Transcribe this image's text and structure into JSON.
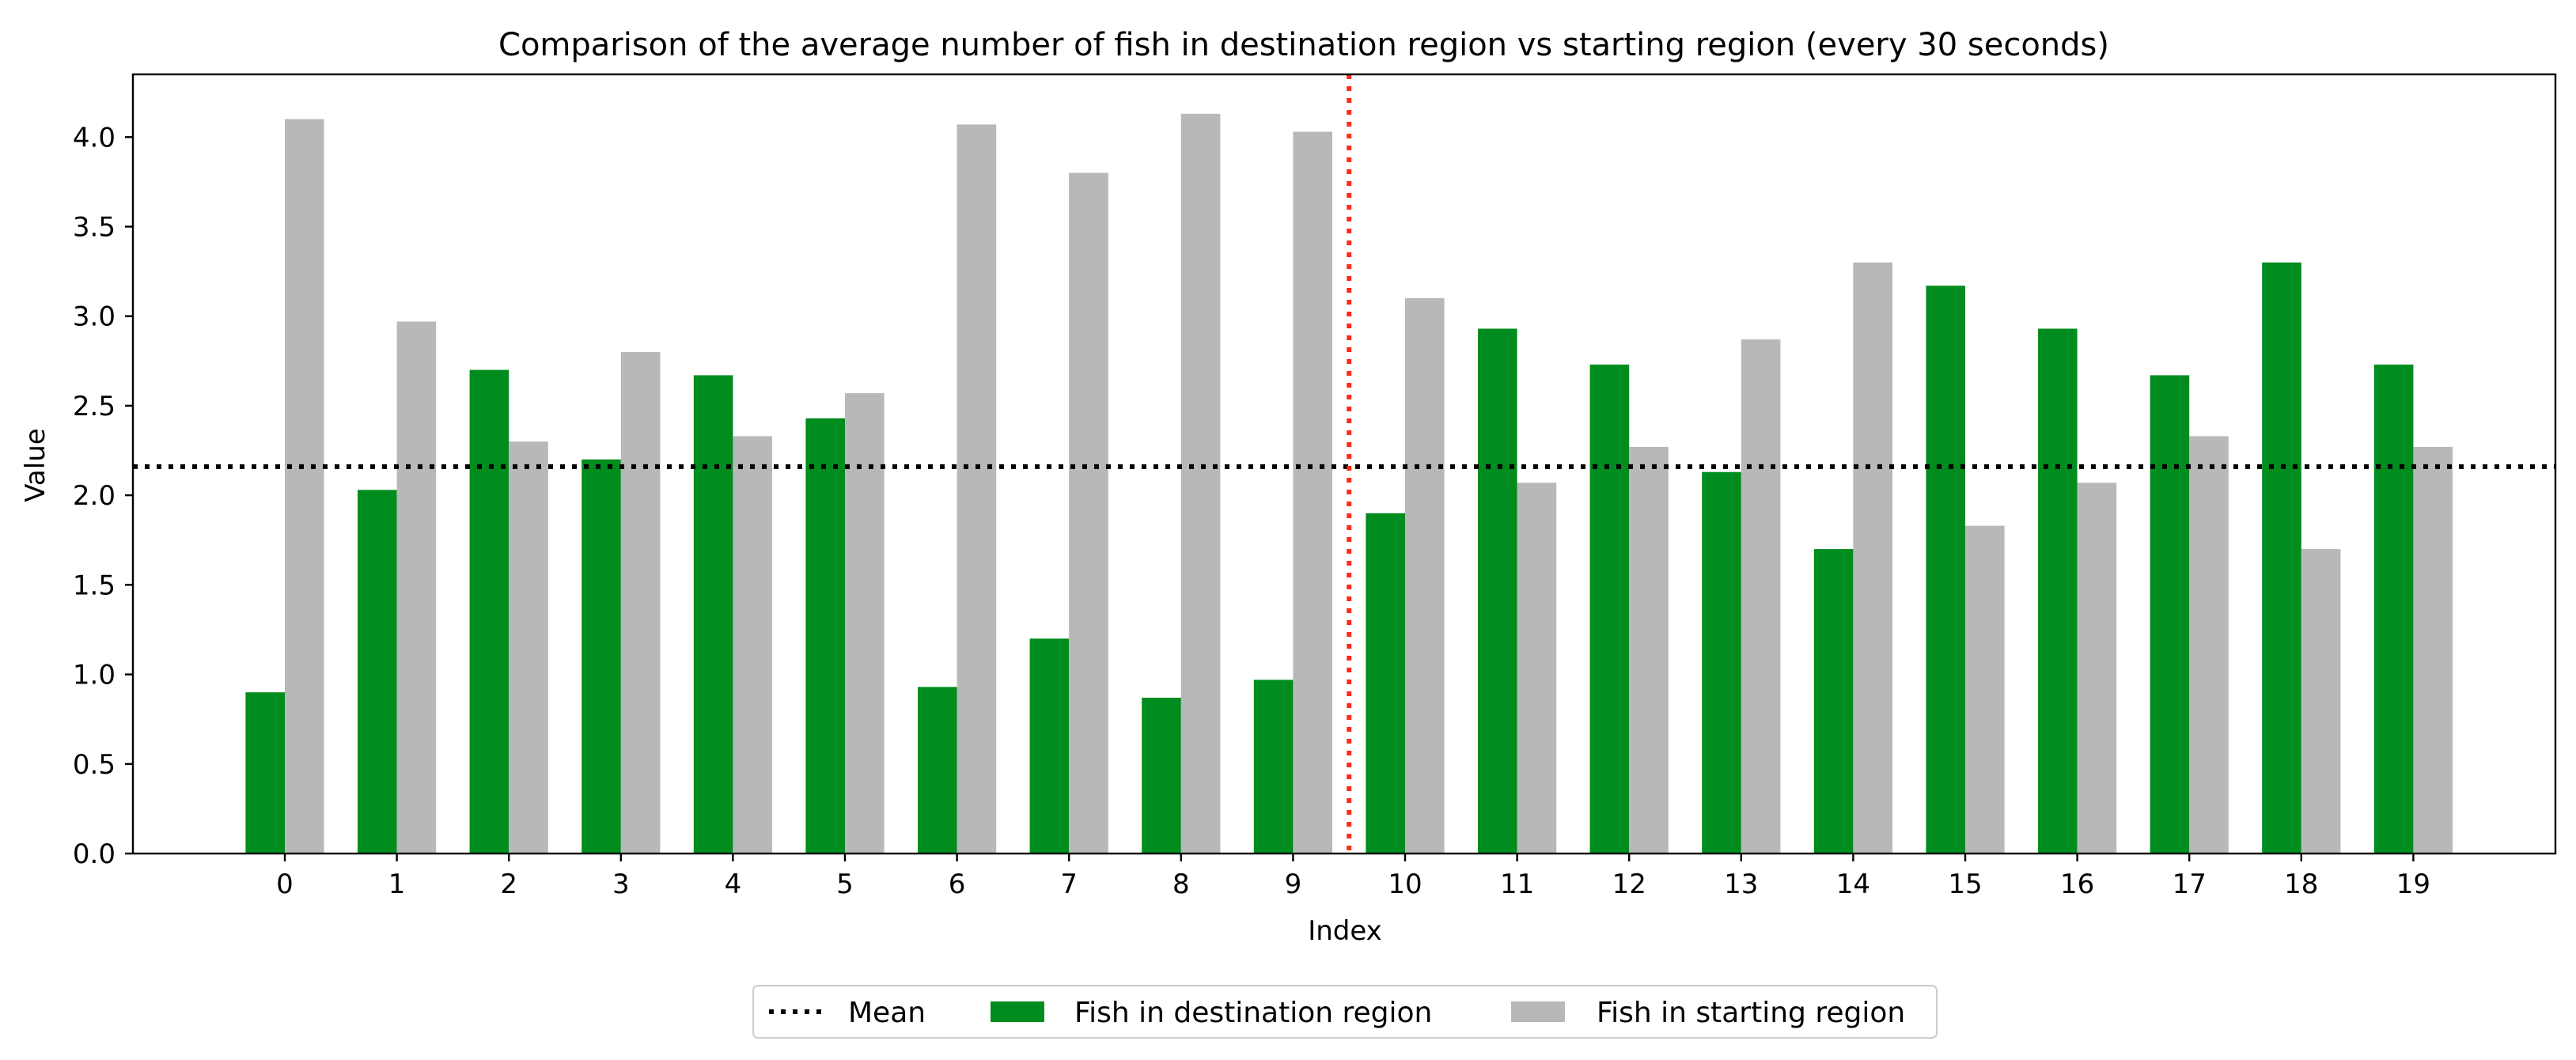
{
  "chart_data": {
    "type": "bar",
    "title": "Comparison of the average number of fish in destination region vs starting region (every 30 seconds)",
    "xlabel": "Index",
    "ylabel": "Value",
    "ylim": [
      0,
      4.35
    ],
    "yticks": [
      "0.0",
      "0.5",
      "1.0",
      "1.5",
      "2.0",
      "2.5",
      "3.0",
      "3.5",
      "4.0"
    ],
    "categories": [
      "0",
      "1",
      "2",
      "3",
      "4",
      "5",
      "6",
      "7",
      "8",
      "9",
      "10",
      "11",
      "12",
      "13",
      "14",
      "15",
      "16",
      "17",
      "18",
      "19"
    ],
    "series": [
      {
        "name": "Fish in destination region",
        "color": "#008c1e",
        "values": [
          0.9,
          2.03,
          2.7,
          2.2,
          2.67,
          2.43,
          0.93,
          1.2,
          0.87,
          0.97,
          1.9,
          2.93,
          2.73,
          2.13,
          1.7,
          3.17,
          2.93,
          2.67,
          3.3,
          2.73
        ]
      },
      {
        "name": "Fish in starting region",
        "color": "#b8b8b8",
        "values": [
          4.1,
          2.97,
          2.3,
          2.8,
          2.33,
          2.57,
          4.07,
          3.8,
          4.13,
          4.03,
          3.1,
          2.07,
          2.27,
          2.87,
          3.3,
          1.83,
          2.07,
          2.33,
          1.7,
          2.27
        ]
      }
    ],
    "mean": {
      "name": "Mean",
      "value": 2.16,
      "color": "#000000",
      "style": "dotted"
    },
    "divider": {
      "x": 9.5,
      "color": "#ff2a1a",
      "style": "dotted"
    },
    "grid": false,
    "legend_position": "bottom-center"
  }
}
